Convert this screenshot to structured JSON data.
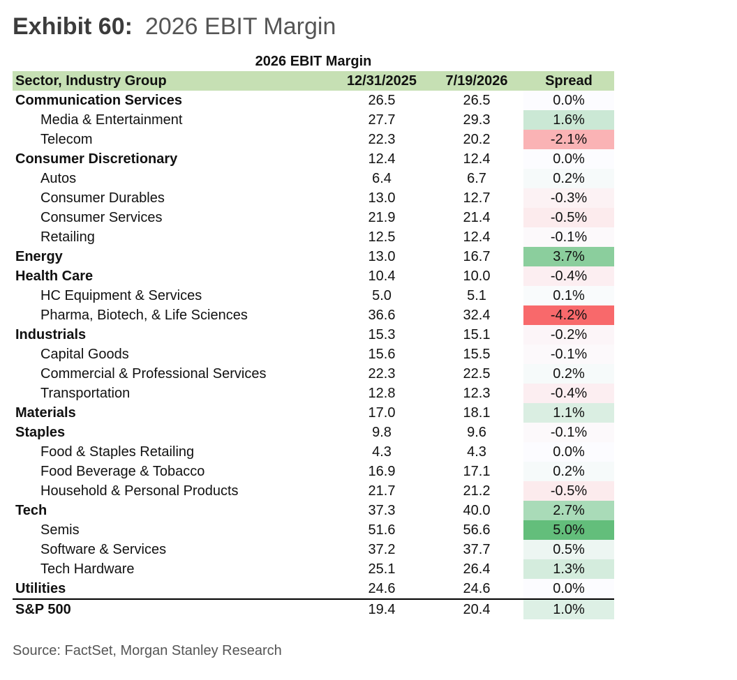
{
  "exhibit": {
    "label": "Exhibit 60:",
    "name": "2026 EBIT Margin"
  },
  "chart_data": {
    "type": "table",
    "title": "2026 EBIT Margin",
    "columns": [
      "Sector, Industry Group",
      "12/31/2025",
      "7/19/2026",
      "Spread"
    ],
    "rows": [
      {
        "name": "Communication Services",
        "level": "sector",
        "v1": "26.5",
        "v2": "26.5",
        "spread": "0.0%",
        "spread_value": 0.0
      },
      {
        "name": "Media & Entertainment",
        "level": "industry",
        "v1": "27.7",
        "v2": "29.3",
        "spread": "1.6%",
        "spread_value": 1.6
      },
      {
        "name": "Telecom",
        "level": "industry",
        "v1": "22.3",
        "v2": "20.2",
        "spread": "-2.1%",
        "spread_value": -2.1
      },
      {
        "name": "Consumer Discretionary",
        "level": "sector",
        "v1": "12.4",
        "v2": "12.4",
        "spread": "0.0%",
        "spread_value": 0.0
      },
      {
        "name": "Autos",
        "level": "industry",
        "v1": "6.4",
        "v2": "6.7",
        "spread": "0.2%",
        "spread_value": 0.2
      },
      {
        "name": "Consumer Durables",
        "level": "industry",
        "v1": "13.0",
        "v2": "12.7",
        "spread": "-0.3%",
        "spread_value": -0.3
      },
      {
        "name": "Consumer Services",
        "level": "industry",
        "v1": "21.9",
        "v2": "21.4",
        "spread": "-0.5%",
        "spread_value": -0.5
      },
      {
        "name": "Retailing",
        "level": "industry",
        "v1": "12.5",
        "v2": "12.4",
        "spread": "-0.1%",
        "spread_value": -0.1
      },
      {
        "name": "Energy",
        "level": "sector",
        "v1": "13.0",
        "v2": "16.7",
        "spread": "3.7%",
        "spread_value": 3.7
      },
      {
        "name": "Health Care",
        "level": "sector",
        "v1": "10.4",
        "v2": "10.0",
        "spread": "-0.4%",
        "spread_value": -0.4
      },
      {
        "name": "HC Equipment & Services",
        "level": "industry",
        "v1": "5.0",
        "v2": "5.1",
        "spread": "0.1%",
        "spread_value": 0.1
      },
      {
        "name": "Pharma, Biotech, & Life Sciences",
        "level": "industry",
        "v1": "36.6",
        "v2": "32.4",
        "spread": "-4.2%",
        "spread_value": -4.2
      },
      {
        "name": "Industrials",
        "level": "sector",
        "v1": "15.3",
        "v2": "15.1",
        "spread": "-0.2%",
        "spread_value": -0.2
      },
      {
        "name": "Capital Goods",
        "level": "industry",
        "v1": "15.6",
        "v2": "15.5",
        "spread": "-0.1%",
        "spread_value": -0.1
      },
      {
        "name": "Commercial & Professional Services",
        "level": "industry",
        "v1": "22.3",
        "v2": "22.5",
        "spread": "0.2%",
        "spread_value": 0.2
      },
      {
        "name": "Transportation",
        "level": "industry",
        "v1": "12.8",
        "v2": "12.3",
        "spread": "-0.4%",
        "spread_value": -0.4
      },
      {
        "name": "Materials",
        "level": "sector",
        "v1": "17.0",
        "v2": "18.1",
        "spread": "1.1%",
        "spread_value": 1.1
      },
      {
        "name": "Staples",
        "level": "sector",
        "v1": "9.8",
        "v2": "9.6",
        "spread": "-0.1%",
        "spread_value": -0.1
      },
      {
        "name": "Food & Staples Retailing",
        "level": "industry",
        "v1": "4.3",
        "v2": "4.3",
        "spread": "0.0%",
        "spread_value": 0.0
      },
      {
        "name": "Food Beverage & Tobacco",
        "level": "industry",
        "v1": "16.9",
        "v2": "17.1",
        "spread": "0.2%",
        "spread_value": 0.2
      },
      {
        "name": "Household & Personal Products",
        "level": "industry",
        "v1": "21.7",
        "v2": "21.2",
        "spread": "-0.5%",
        "spread_value": -0.5
      },
      {
        "name": "Tech",
        "level": "sector",
        "v1": "37.3",
        "v2": "40.0",
        "spread": "2.7%",
        "spread_value": 2.7
      },
      {
        "name": "Semis",
        "level": "industry",
        "v1": "51.6",
        "v2": "56.6",
        "spread": "5.0%",
        "spread_value": 5.0
      },
      {
        "name": "Software & Services",
        "level": "industry",
        "v1": "37.2",
        "v2": "37.7",
        "spread": "0.5%",
        "spread_value": 0.5
      },
      {
        "name": "Tech Hardware",
        "level": "industry",
        "v1": "25.1",
        "v2": "26.4",
        "spread": "1.3%",
        "spread_value": 1.3
      },
      {
        "name": "Utilities",
        "level": "sector",
        "v1": "24.6",
        "v2": "24.6",
        "spread": "0.0%",
        "spread_value": 0.0
      },
      {
        "name": "S&P 500",
        "level": "total",
        "v1": "19.4",
        "v2": "20.4",
        "spread": "1.0%",
        "spread_value": 1.0
      }
    ],
    "colors": {
      "header_fill": "#c6e0b4",
      "max_positive": "#63be7b",
      "max_negative": "#f8696b",
      "neutral": "#fcfcff"
    }
  },
  "source": "Source: FactSet, Morgan Stanley Research"
}
